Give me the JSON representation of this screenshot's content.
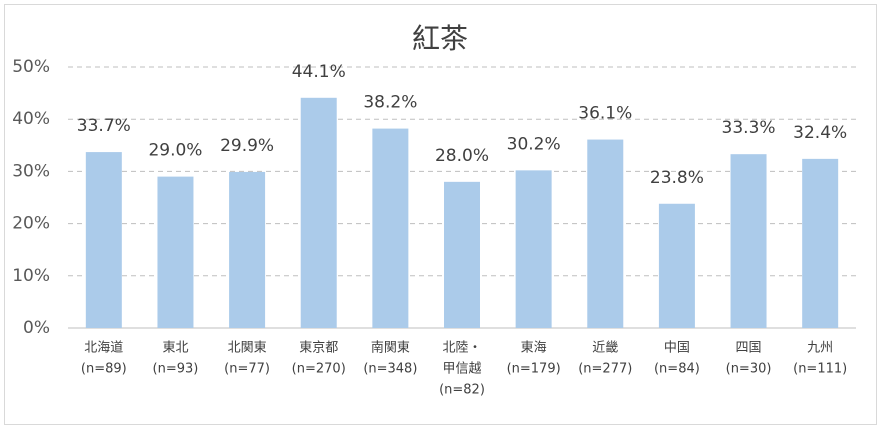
{
  "chart_data": {
    "type": "bar",
    "title": "紅茶",
    "categories": [
      [
        "北海道",
        "(n=89)"
      ],
      [
        "東北",
        "(n=93)"
      ],
      [
        "北関東",
        "(n=77)"
      ],
      [
        "東京都",
        "(n=270)"
      ],
      [
        "南関東",
        "(n=348)"
      ],
      [
        "北陸・",
        "甲信越",
        "(n=82)"
      ],
      [
        "東海",
        "(n=179)"
      ],
      [
        "近畿",
        "(n=277)"
      ],
      [
        "中国",
        "(n=84)"
      ],
      [
        "四国",
        "(n=30)"
      ],
      [
        "九州",
        "(n=111)"
      ]
    ],
    "values": [
      33.7,
      29.0,
      29.9,
      44.1,
      38.2,
      28.0,
      30.2,
      36.1,
      23.8,
      33.3,
      32.4
    ],
    "value_labels": [
      "33.7%",
      "29.0%",
      "29.9%",
      "44.1%",
      "38.2%",
      "28.0%",
      "30.2%",
      "36.1%",
      "23.8%",
      "33.3%",
      "32.4%"
    ],
    "color": "#abcbea",
    "ylim": [
      0,
      50
    ],
    "yticks": [
      {
        "value": 0,
        "label": "0%"
      },
      {
        "value": 10,
        "label": "10%"
      },
      {
        "value": 20,
        "label": "20%"
      },
      {
        "value": 30,
        "label": "30%"
      },
      {
        "value": 40,
        "label": "40%"
      },
      {
        "value": 50,
        "label": "50%"
      }
    ],
    "grid": true
  }
}
